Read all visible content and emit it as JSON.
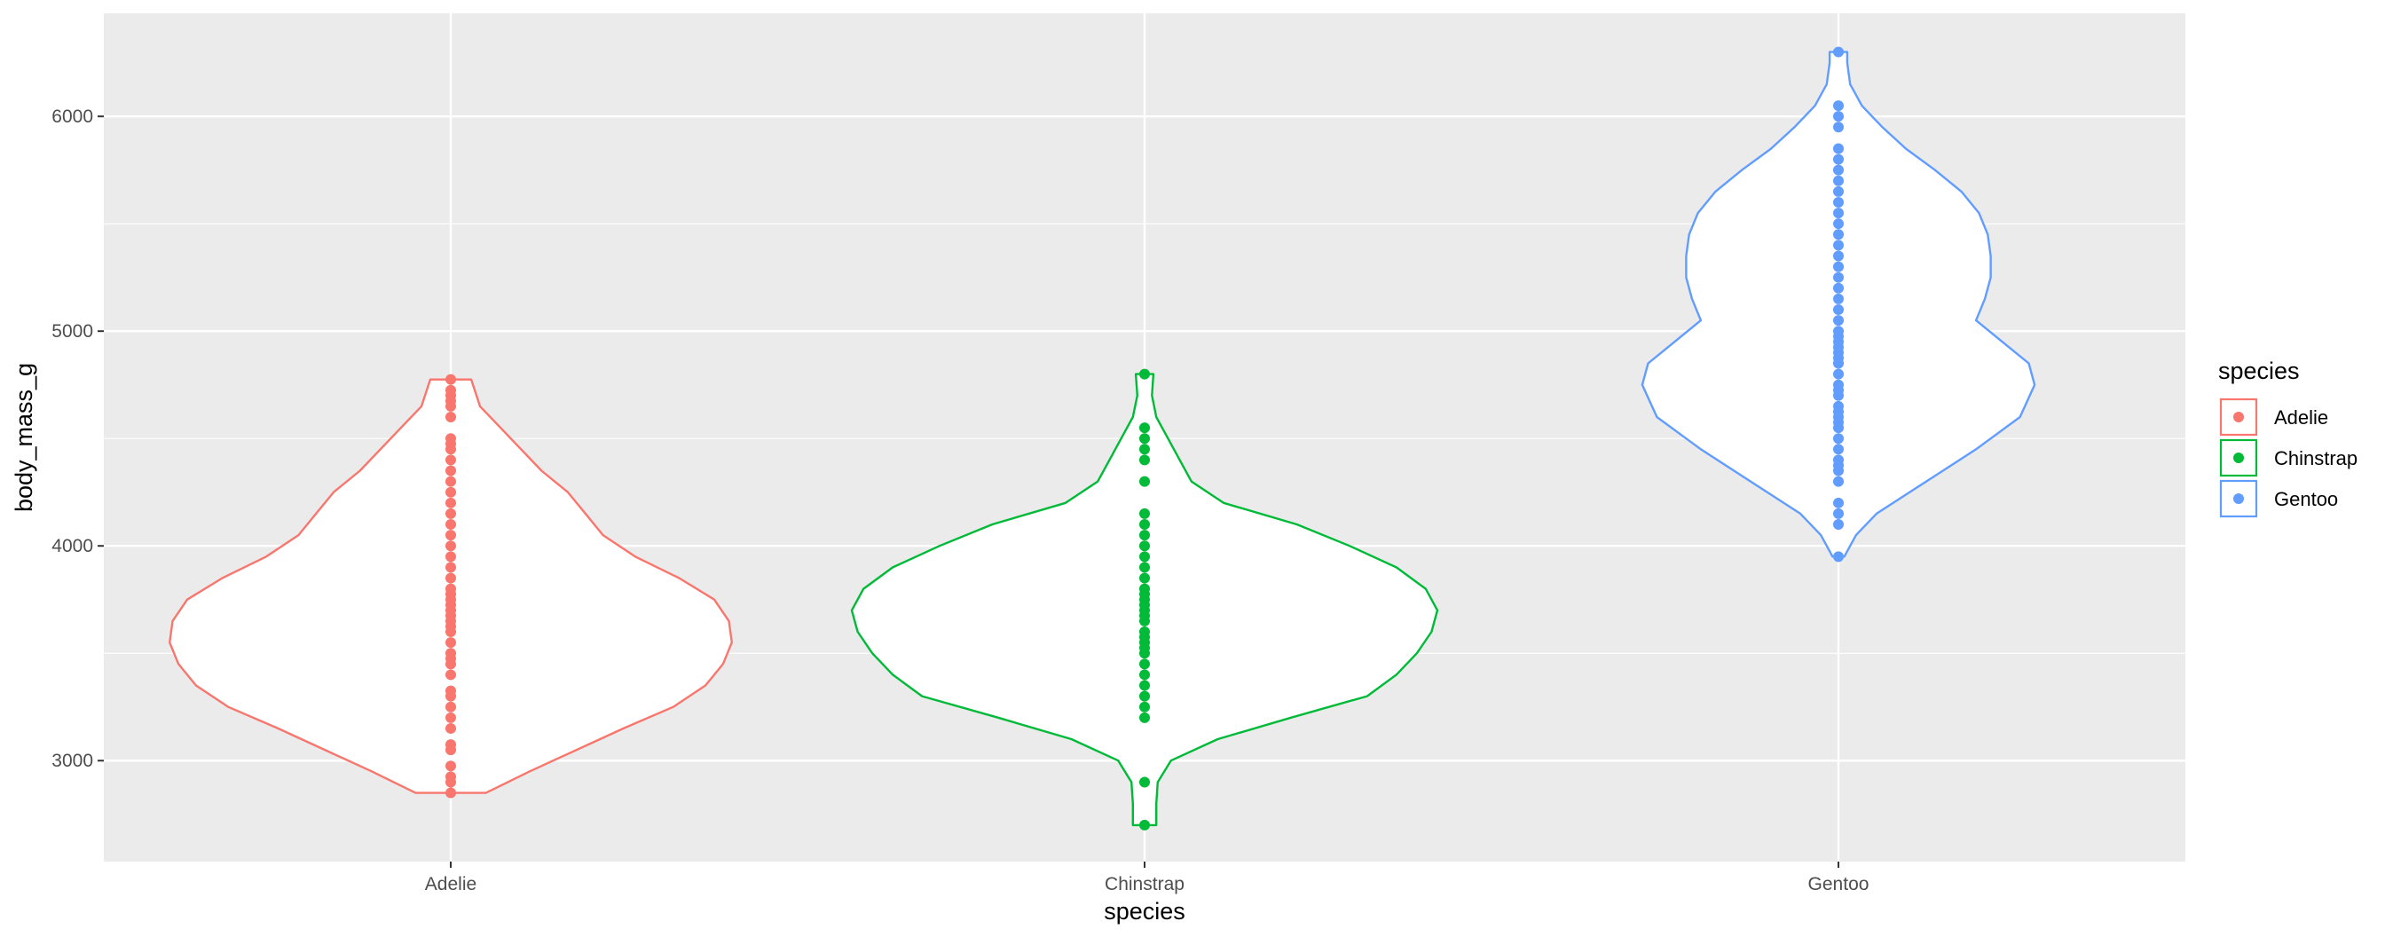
{
  "chart_data": {
    "type": "violin",
    "xlabel": "species",
    "ylabel": "body_mass_g",
    "ylim": [
      2530,
      6480
    ],
    "yticks": [
      3000,
      4000,
      5000,
      6000
    ],
    "categories": [
      "Adelie",
      "Chinstrap",
      "Gentoo"
    ],
    "grid": true,
    "legend": {
      "title": "species",
      "position": "right",
      "entries": [
        "Adelie",
        "Chinstrap",
        "Gentoo"
      ]
    },
    "series": [
      {
        "name": "Adelie",
        "color": "#F8766D",
        "violin_half_width": [
          [
            2850,
            0.12
          ],
          [
            2950,
            0.27
          ],
          [
            3050,
            0.43
          ],
          [
            3150,
            0.59
          ],
          [
            3250,
            0.76
          ],
          [
            3350,
            0.87
          ],
          [
            3450,
            0.93
          ],
          [
            3550,
            0.96
          ],
          [
            3650,
            0.95
          ],
          [
            3750,
            0.9
          ],
          [
            3850,
            0.78
          ],
          [
            3950,
            0.63
          ],
          [
            4050,
            0.52
          ],
          [
            4150,
            0.46
          ],
          [
            4250,
            0.4
          ],
          [
            4350,
            0.31
          ],
          [
            4450,
            0.24
          ],
          [
            4550,
            0.17
          ],
          [
            4650,
            0.1
          ],
          [
            4775,
            0.07
          ]
        ],
        "points": [
          2850,
          2900,
          2925,
          2975,
          3050,
          3075,
          3150,
          3200,
          3250,
          3300,
          3325,
          3400,
          3450,
          3475,
          3500,
          3550,
          3600,
          3625,
          3650,
          3675,
          3700,
          3725,
          3750,
          3775,
          3800,
          3850,
          3900,
          3950,
          4000,
          4050,
          4100,
          4150,
          4200,
          4250,
          4300,
          4350,
          4400,
          4450,
          4475,
          4500,
          4600,
          4650,
          4675,
          4700,
          4725,
          4775
        ]
      },
      {
        "name": "Chinstrap",
        "color": "#00BA38",
        "violin_half_width": [
          [
            2700,
            0.04
          ],
          [
            2800,
            0.04
          ],
          [
            2900,
            0.045
          ],
          [
            3000,
            0.09
          ],
          [
            3100,
            0.25
          ],
          [
            3200,
            0.5
          ],
          [
            3300,
            0.76
          ],
          [
            3400,
            0.86
          ],
          [
            3500,
            0.93
          ],
          [
            3600,
            0.98
          ],
          [
            3700,
            1.0
          ],
          [
            3800,
            0.96
          ],
          [
            3900,
            0.86
          ],
          [
            4000,
            0.7
          ],
          [
            4100,
            0.52
          ],
          [
            4200,
            0.27
          ],
          [
            4300,
            0.16
          ],
          [
            4400,
            0.12
          ],
          [
            4500,
            0.08
          ],
          [
            4600,
            0.04
          ],
          [
            4700,
            0.025
          ],
          [
            4800,
            0.03
          ]
        ],
        "points": [
          2700,
          2900,
          3200,
          3250,
          3300,
          3350,
          3400,
          3450,
          3500,
          3525,
          3550,
          3575,
          3600,
          3650,
          3675,
          3700,
          3725,
          3750,
          3775,
          3800,
          3850,
          3900,
          3950,
          4000,
          4050,
          4100,
          4150,
          4300,
          4400,
          4450,
          4500,
          4550,
          4800
        ]
      },
      {
        "name": "Gentoo",
        "color": "#619CFF",
        "violin_half_width": [
          [
            3950,
            0.02
          ],
          [
            4050,
            0.06
          ],
          [
            4150,
            0.13
          ],
          [
            4300,
            0.3
          ],
          [
            4450,
            0.47
          ],
          [
            4600,
            0.62
          ],
          [
            4750,
            0.67
          ],
          [
            4850,
            0.65
          ],
          [
            4950,
            0.56
          ],
          [
            5050,
            0.47
          ],
          [
            5150,
            0.5
          ],
          [
            5250,
            0.52
          ],
          [
            5350,
            0.52
          ],
          [
            5450,
            0.51
          ],
          [
            5550,
            0.48
          ],
          [
            5650,
            0.42
          ],
          [
            5750,
            0.33
          ],
          [
            5850,
            0.23
          ],
          [
            5950,
            0.15
          ],
          [
            6050,
            0.08
          ],
          [
            6150,
            0.04
          ],
          [
            6250,
            0.03
          ],
          [
            6300,
            0.03
          ]
        ],
        "points": [
          3950,
          4100,
          4150,
          4200,
          4300,
          4350,
          4375,
          4400,
          4450,
          4500,
          4550,
          4575,
          4600,
          4625,
          4650,
          4700,
          4725,
          4750,
          4800,
          4850,
          4875,
          4900,
          4925,
          4950,
          4975,
          5000,
          5050,
          5100,
          5150,
          5200,
          5250,
          5300,
          5350,
          5400,
          5450,
          5500,
          5550,
          5600,
          5650,
          5700,
          5750,
          5800,
          5850,
          5950,
          6000,
          6050,
          6300
        ]
      }
    ]
  }
}
